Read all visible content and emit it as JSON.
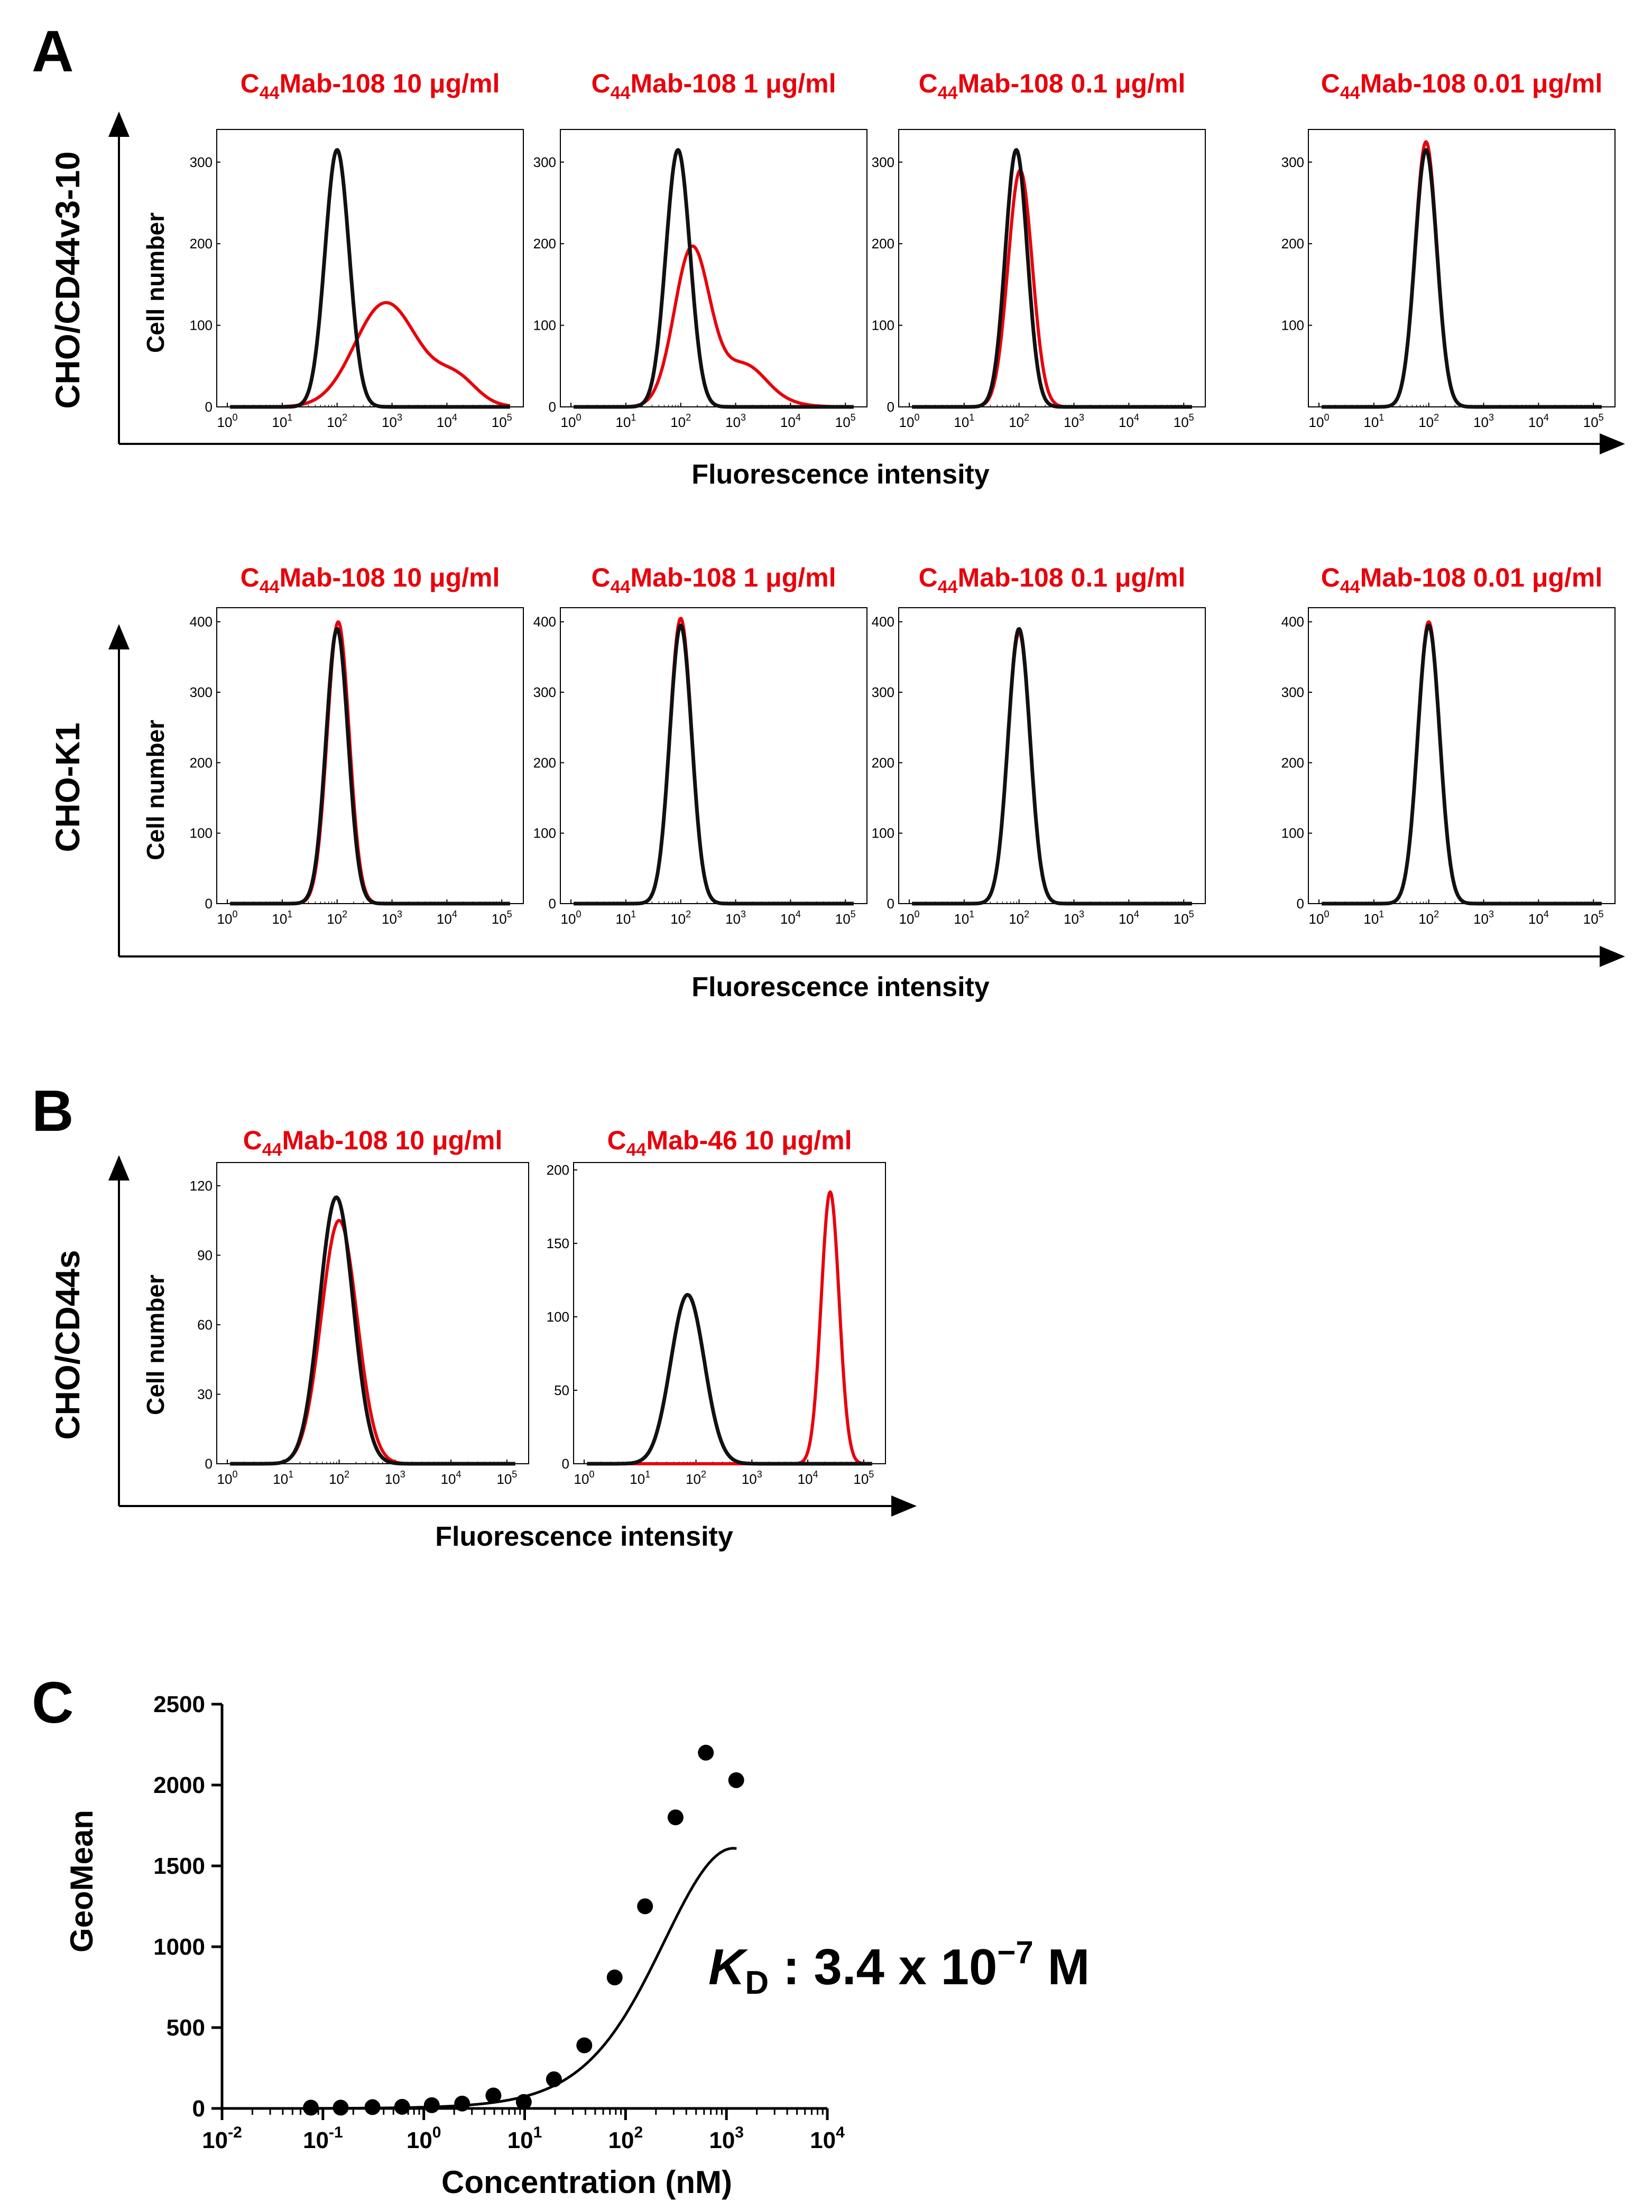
{
  "panels": {
    "a": "A",
    "b": "B",
    "c": "C"
  },
  "axis_text": {
    "cell_number": "Cell number",
    "fluorescence": "Fluorescence intensity"
  },
  "colors": {
    "control": "#111111",
    "antibody": "#e8000b"
  },
  "chart_data": [
    {
      "id": "A-top",
      "type": "line",
      "row_label": "CHO/CD44v3-10",
      "xlabel": "Fluorescence intensity",
      "ylabel": "Cell number",
      "x_scale": "log10",
      "xlim": [
        1,
        150000
      ],
      "x_ticks": [
        "10^0",
        "10^1",
        "10^2",
        "10^3",
        "10^4",
        "10^5"
      ],
      "subplots": [
        {
          "title_main": "C",
          "title_sub": "44",
          "title_rest": "Mab-108 10 μg/ml",
          "y_ticks": [
            0,
            100,
            200,
            300
          ],
          "ylim": [
            0,
            340
          ],
          "series": [
            {
              "name": "control",
              "peak_x": 2.0,
              "peak_y": 315,
              "width": 0.22
            },
            {
              "name": "C44Mab-108",
              "peak_x": 2.85,
              "peak_y": 120,
              "width": 0.55,
              "tail": [
                4.2,
                25
              ]
            }
          ]
        },
        {
          "title_main": "C",
          "title_sub": "44",
          "title_rest": "Mab-108  1 μg/ml",
          "y_ticks": [
            0,
            100,
            200,
            300
          ],
          "ylim": [
            0,
            340
          ],
          "series": [
            {
              "name": "control",
              "peak_x": 1.95,
              "peak_y": 315,
              "width": 0.22
            },
            {
              "name": "C44Mab-108",
              "peak_x": 2.2,
              "peak_y": 185,
              "width": 0.32,
              "tail": [
                3.2,
                25
              ]
            }
          ]
        },
        {
          "title_main": "C",
          "title_sub": "44",
          "title_rest": "Mab-108  0.1 μg/ml",
          "y_ticks": [
            0,
            100,
            200,
            300
          ],
          "ylim": [
            0,
            340
          ],
          "series": [
            {
              "name": "control",
              "peak_x": 1.95,
              "peak_y": 315,
              "width": 0.2
            },
            {
              "name": "C44Mab-108",
              "peak_x": 2.02,
              "peak_y": 290,
              "width": 0.22
            }
          ]
        },
        {
          "title_main": "C",
          "title_sub": "44",
          "title_rest": "Mab-108  0.01 μg/ml",
          "y_ticks": [
            100,
            200,
            300
          ],
          "ylim": [
            0,
            340
          ],
          "series": [
            {
              "name": "control",
              "peak_x": 1.95,
              "peak_y": 315,
              "width": 0.2
            },
            {
              "name": "C44Mab-108",
              "peak_x": 1.95,
              "peak_y": 325,
              "width": 0.2
            }
          ]
        }
      ]
    },
    {
      "id": "A-bottom",
      "type": "line",
      "row_label": "CHO-K1",
      "xlabel": "Fluorescence intensity",
      "ylabel": "Cell number",
      "x_scale": "log10",
      "xlim": [
        1,
        150000
      ],
      "x_ticks": [
        "10^0",
        "10^1",
        "10^2",
        "10^3",
        "10^4",
        "10^5"
      ],
      "subplots": [
        {
          "title_main": "C",
          "title_sub": "44",
          "title_rest": "Mab-108 10 μg/ml",
          "y_ticks": [
            0,
            100,
            200,
            300,
            400
          ],
          "ylim": [
            0,
            420
          ],
          "series": [
            {
              "name": "control",
              "peak_x": 2.0,
              "peak_y": 390,
              "width": 0.2
            },
            {
              "name": "C44Mab-108",
              "peak_x": 2.02,
              "peak_y": 400,
              "width": 0.2
            }
          ]
        },
        {
          "title_main": "C",
          "title_sub": "44",
          "title_rest": "Mab-108  1 μg/ml",
          "y_ticks": [
            0,
            100,
            200,
            300,
            400
          ],
          "ylim": [
            0,
            420
          ],
          "series": [
            {
              "name": "control",
              "peak_x": 2.0,
              "peak_y": 395,
              "width": 0.2
            },
            {
              "name": "C44Mab-108",
              "peak_x": 2.0,
              "peak_y": 405,
              "width": 0.2
            }
          ]
        },
        {
          "title_main": "C",
          "title_sub": "44",
          "title_rest": "Mab-108  0.1 μg/ml",
          "y_ticks": [
            0,
            100,
            200,
            300,
            400
          ],
          "ylim": [
            0,
            420
          ],
          "series": [
            {
              "name": "control",
              "peak_x": 2.0,
              "peak_y": 390,
              "width": 0.2
            },
            {
              "name": "C44Mab-108",
              "peak_x": 2.0,
              "peak_y": 385,
              "width": 0.2
            }
          ]
        },
        {
          "title_main": "C",
          "title_sub": "44",
          "title_rest": "Mab-108  0.01 μg/ml",
          "y_ticks": [
            0,
            100,
            200,
            300,
            400
          ],
          "ylim": [
            0,
            420
          ],
          "series": [
            {
              "name": "control",
              "peak_x": 2.0,
              "peak_y": 395,
              "width": 0.2
            },
            {
              "name": "C44Mab-108",
              "peak_x": 2.0,
              "peak_y": 400,
              "width": 0.2
            }
          ]
        }
      ]
    },
    {
      "id": "B",
      "type": "line",
      "row_label": "CHO/CD44s",
      "xlabel": "Fluorescence intensity",
      "ylabel": "Cell number",
      "x_scale": "log10",
      "xlim": [
        1,
        150000
      ],
      "x_ticks": [
        "10^0",
        "10^1",
        "10^2",
        "10^3",
        "10^4",
        "10^5"
      ],
      "subplots": [
        {
          "title_main": "C",
          "title_sub": "44",
          "title_rest": "Mab-108 10 μg/ml",
          "y_ticks": [
            0,
            30,
            60,
            90,
            120
          ],
          "ylim": [
            0,
            130
          ],
          "series": [
            {
              "name": "control",
              "peak_x": 1.95,
              "peak_y": 115,
              "width": 0.3
            },
            {
              "name": "C44Mab-108",
              "peak_x": 2.0,
              "peak_y": 105,
              "width": 0.32
            }
          ]
        },
        {
          "title_main": "C",
          "title_sub": "44",
          "title_rest": "Mab-46 10 μg/ml",
          "y_ticks": [
            0,
            50,
            100,
            150,
            200
          ],
          "ylim": [
            0,
            205
          ],
          "series": [
            {
              "name": "control",
              "peak_x": 1.85,
              "peak_y": 115,
              "width": 0.3
            },
            {
              "name": "C44Mab-46",
              "peak_x": 4.4,
              "peak_y": 185,
              "width": 0.16
            }
          ]
        }
      ]
    },
    {
      "id": "C",
      "type": "scatter",
      "title": "",
      "xlabel": "Concentration (nM)",
      "ylabel": "GeoMean",
      "x_scale": "log10",
      "xlim": [
        0.01,
        10000
      ],
      "ylim": [
        0,
        2500
      ],
      "x_ticks": [
        "10^-2",
        "10^-1",
        "10^0",
        "10^1",
        "10^2",
        "10^3",
        "10^4"
      ],
      "y_ticks": [
        0,
        500,
        1000,
        1500,
        2000,
        2500
      ],
      "x": [
        0.076,
        0.15,
        0.31,
        0.61,
        1.2,
        2.4,
        4.9,
        9.8,
        19.5,
        39,
        78,
        156,
        313,
        625,
        1250
      ],
      "y": [
        5,
        5,
        8,
        10,
        20,
        30,
        80,
        40,
        180,
        390,
        810,
        1250,
        1800,
        2200,
        2030
      ],
      "fit": "saturation binding curve",
      "annotation": {
        "k": "K",
        "k_sub": "D",
        "text": " : 3.4 x 10",
        "exp": "−7",
        "unit": " M"
      }
    }
  ]
}
